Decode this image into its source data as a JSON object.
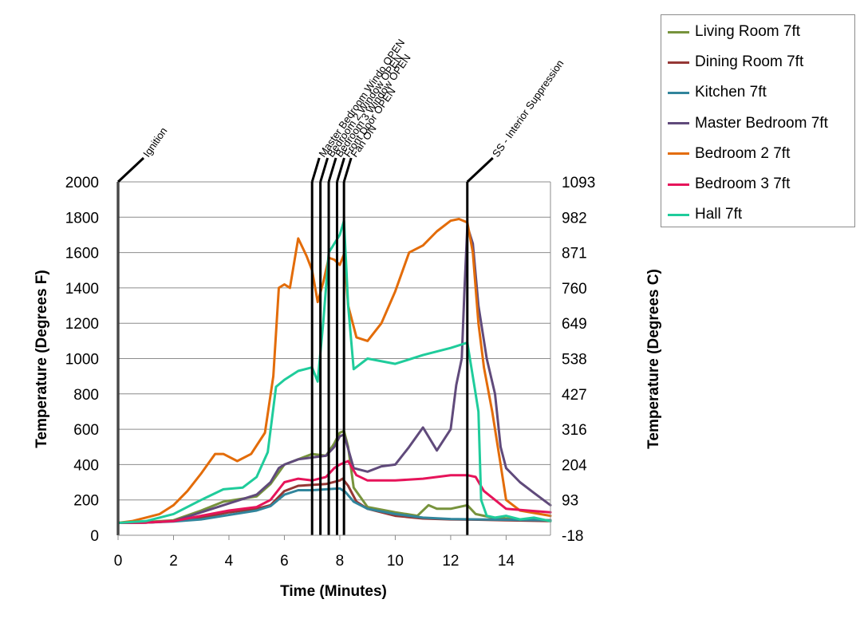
{
  "chart_data": {
    "type": "line",
    "xlabel": "Time (Minutes)",
    "ylabel": "Temperature (Degrees F)",
    "y2label": "Temperature (Degrees C)",
    "xlim": [
      0,
      15.6
    ],
    "ylim": [
      0,
      2000
    ],
    "x_ticks": [
      0,
      2,
      4,
      6,
      8,
      10,
      12,
      14
    ],
    "y_ticks": [
      0,
      200,
      400,
      600,
      800,
      1000,
      1200,
      1400,
      1600,
      1800,
      2000
    ],
    "y2_ticks": [
      "-18",
      "93",
      "204",
      "316",
      "427",
      "538",
      "649",
      "760",
      "871",
      "982",
      "1093"
    ],
    "grid": "horizontal",
    "legend_position": "right",
    "events": [
      {
        "label": "Ignition",
        "x": 0
      },
      {
        "label": "Master Bedroom Windo OPEN",
        "x": 7.0
      },
      {
        "label": "Bedroom 2 Window OPEN",
        "x": 7.3
      },
      {
        "label": "Bedroom 3 Window OPEN",
        "x": 7.6
      },
      {
        "label": "Front Door OPEN",
        "x": 7.9
      },
      {
        "label": "Fan ON",
        "x": 8.15
      },
      {
        "label": "SS - Interior Suppression",
        "x": 12.6
      }
    ],
    "series": [
      {
        "name": "Living Room 7ft",
        "color": "#77933c",
        "x": [
          0,
          1,
          2,
          3,
          3.8,
          5,
          5.5,
          6,
          6.5,
          7,
          7.5,
          7.8,
          8.0,
          8.15,
          8.3,
          8.5,
          9,
          10,
          10.8,
          11.2,
          11.5,
          12,
          12.6,
          12.9,
          13.5,
          14.5,
          15.6
        ],
        "y": [
          70,
          75,
          85,
          140,
          190,
          220,
          290,
          400,
          430,
          460,
          450,
          520,
          580,
          590,
          500,
          270,
          160,
          130,
          110,
          170,
          150,
          150,
          170,
          120,
          100,
          90,
          85
        ]
      },
      {
        "name": "Dining Room 7ft",
        "color": "#953735",
        "x": [
          0,
          1,
          2,
          3,
          4,
          5,
          5.5,
          6,
          6.5,
          7,
          7.5,
          8,
          8.1,
          8.3,
          8.6,
          9,
          10,
          11,
          12,
          13,
          14,
          15.6
        ],
        "y": [
          70,
          72,
          80,
          100,
          130,
          150,
          170,
          250,
          280,
          285,
          290,
          310,
          320,
          280,
          190,
          150,
          110,
          95,
          90,
          88,
          85,
          80
        ]
      },
      {
        "name": "Kitchen 7ft",
        "color": "#31859c",
        "x": [
          0,
          1,
          2,
          3,
          4,
          5,
          5.5,
          6,
          6.5,
          7,
          7.5,
          8,
          8.2,
          8.5,
          9,
          10,
          11,
          12,
          13,
          14,
          15.6
        ],
        "y": [
          70,
          72,
          78,
          90,
          115,
          140,
          165,
          230,
          255,
          255,
          260,
          265,
          245,
          190,
          150,
          120,
          100,
          92,
          90,
          88,
          85
        ]
      },
      {
        "name": "Master Bedroom 7ft",
        "color": "#604a7b",
        "x": [
          0,
          1,
          2,
          3,
          4,
          5,
          5.5,
          5.8,
          6,
          6.5,
          7,
          7.5,
          7.8,
          8.0,
          8.15,
          8.3,
          8.5,
          9,
          9.5,
          10,
          10.5,
          11,
          11.5,
          12,
          12.2,
          12.4,
          12.5,
          12.6,
          12.8,
          13,
          13.3,
          13.6,
          13.8,
          14,
          14.5,
          15,
          15.6
        ],
        "y": [
          70,
          72,
          80,
          130,
          180,
          230,
          300,
          380,
          400,
          430,
          440,
          450,
          500,
          560,
          570,
          490,
          380,
          360,
          390,
          400,
          500,
          610,
          480,
          600,
          850,
          1000,
          1400,
          1750,
          1650,
          1300,
          1000,
          800,
          500,
          380,
          300,
          240,
          170
        ]
      },
      {
        "name": "Bedroom 2 7ft",
        "color": "#e36c09",
        "x": [
          0,
          0.5,
          1,
          1.5,
          2,
          2.5,
          3,
          3.5,
          3.8,
          4.3,
          4.8,
          5.3,
          5.6,
          5.8,
          6.0,
          6.2,
          6.5,
          6.8,
          7.0,
          7.2,
          7.4,
          7.6,
          7.8,
          8.0,
          8.15,
          8.3,
          8.6,
          9,
          9.5,
          10,
          10.5,
          11,
          11.5,
          12,
          12.3,
          12.6,
          12.8,
          13.0,
          13.2,
          13.5,
          13.8,
          14,
          14.5,
          15.6
        ],
        "y": [
          70,
          80,
          100,
          120,
          170,
          250,
          350,
          460,
          460,
          420,
          460,
          580,
          900,
          1400,
          1420,
          1400,
          1680,
          1580,
          1500,
          1320,
          1430,
          1570,
          1560,
          1530,
          1590,
          1300,
          1120,
          1100,
          1200,
          1380,
          1600,
          1640,
          1720,
          1780,
          1790,
          1770,
          1600,
          1200,
          950,
          700,
          400,
          200,
          140,
          110
        ]
      },
      {
        "name": "Bedroom 3 7ft",
        "color": "#e6145a",
        "x": [
          0,
          1,
          2,
          3,
          4,
          5,
          5.5,
          6,
          6.5,
          7,
          7.5,
          7.8,
          8.0,
          8.3,
          8.6,
          9,
          10,
          11,
          12,
          12.6,
          12.9,
          13.2,
          14,
          15.6
        ],
        "y": [
          70,
          72,
          80,
          110,
          140,
          160,
          200,
          300,
          320,
          310,
          330,
          380,
          400,
          420,
          340,
          310,
          310,
          320,
          340,
          340,
          330,
          250,
          150,
          130
        ]
      },
      {
        "name": "Hall 7ft",
        "color": "#1fcc9b",
        "x": [
          0,
          1,
          2,
          3,
          3.8,
          4.5,
          5,
          5.4,
          5.7,
          6.0,
          6.5,
          7,
          7.2,
          7.4,
          7.6,
          7.8,
          8.0,
          8.15,
          8.3,
          8.5,
          9,
          10,
          11,
          12,
          12.6,
          12.9,
          13.0,
          13.1,
          13.3,
          13.6,
          14,
          14.5,
          15,
          15.6
        ],
        "y": [
          70,
          80,
          120,
          200,
          260,
          270,
          330,
          470,
          840,
          880,
          930,
          950,
          870,
          1200,
          1600,
          1650,
          1700,
          1780,
          1300,
          940,
          1000,
          970,
          1020,
          1060,
          1090,
          800,
          700,
          200,
          110,
          100,
          110,
          90,
          100,
          80
        ]
      }
    ]
  }
}
